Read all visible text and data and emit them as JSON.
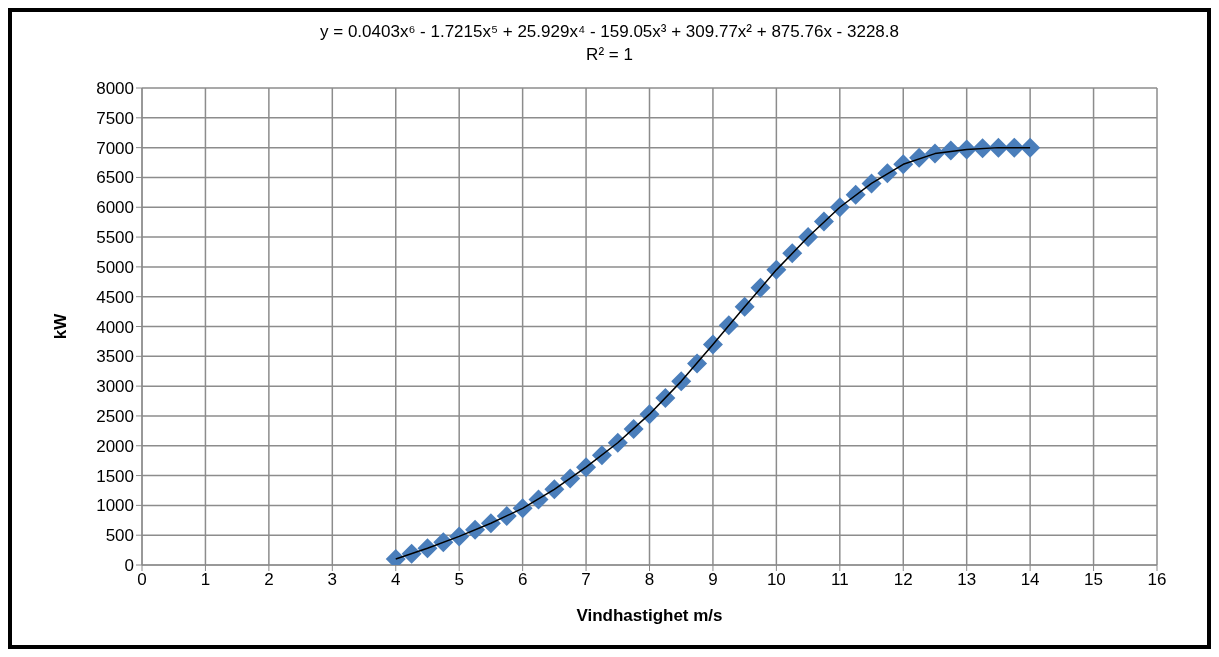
{
  "chart_data": {
    "type": "scatter",
    "xlabel": "Vindhastighet m/s",
    "ylabel": "kW",
    "annotations": [
      "y = 0.0403x⁶ - 1.7215x⁵ + 25.929x⁴ - 159.05x³ + 309.77x² + 875.76x - 3228.8",
      "R² = 1"
    ],
    "xlim": [
      0,
      16
    ],
    "xticks": [
      0,
      1,
      2,
      3,
      4,
      5,
      6,
      7,
      8,
      9,
      10,
      11,
      12,
      13,
      14,
      15,
      16
    ],
    "ylim": [
      0,
      8000
    ],
    "yticks": [
      0,
      500,
      1000,
      1500,
      2000,
      2500,
      3000,
      3500,
      4000,
      4500,
      5000,
      5500,
      6000,
      6500,
      7000,
      7500,
      8000
    ],
    "grid": true,
    "series": [
      {
        "marker": "diamond",
        "color": "#4a7ebb",
        "x": [
          4,
          4.25,
          4.5,
          4.75,
          5,
          5.25,
          5.5,
          5.75,
          6,
          6.25,
          6.5,
          6.75,
          7,
          7.25,
          7.5,
          7.75,
          8,
          8.25,
          8.5,
          8.75,
          9,
          9.25,
          9.5,
          9.75,
          10,
          10.25,
          10.5,
          10.75,
          11,
          11.25,
          11.5,
          11.75,
          12,
          12.25,
          12.5,
          12.75,
          13,
          13.25,
          13.5,
          13.75,
          14
        ],
        "values": [
          100,
          190,
          280,
          380,
          480,
          590,
          700,
          820,
          950,
          1100,
          1270,
          1450,
          1640,
          1840,
          2050,
          2280,
          2530,
          2800,
          3080,
          3380,
          3700,
          4020,
          4330,
          4650,
          4950,
          5230,
          5500,
          5760,
          6000,
          6210,
          6400,
          6570,
          6720,
          6830,
          6900,
          6950,
          6970,
          6990,
          7000,
          7000,
          7000
        ]
      },
      {
        "type": "line",
        "marker": "none",
        "line_style": "solid",
        "color": "#000000",
        "x": [
          4,
          4.5,
          5,
          5.5,
          6,
          6.5,
          7,
          7.5,
          8,
          8.5,
          9,
          9.5,
          10,
          10.5,
          11,
          11.5,
          12,
          12.5,
          13,
          13.5,
          14
        ],
        "values": [
          100,
          280,
          480,
          700,
          950,
          1270,
          1640,
          2050,
          2530,
          3080,
          3700,
          4330,
          4950,
          5500,
          6000,
          6400,
          6720,
          6900,
          6970,
          7000,
          7000
        ]
      }
    ]
  }
}
